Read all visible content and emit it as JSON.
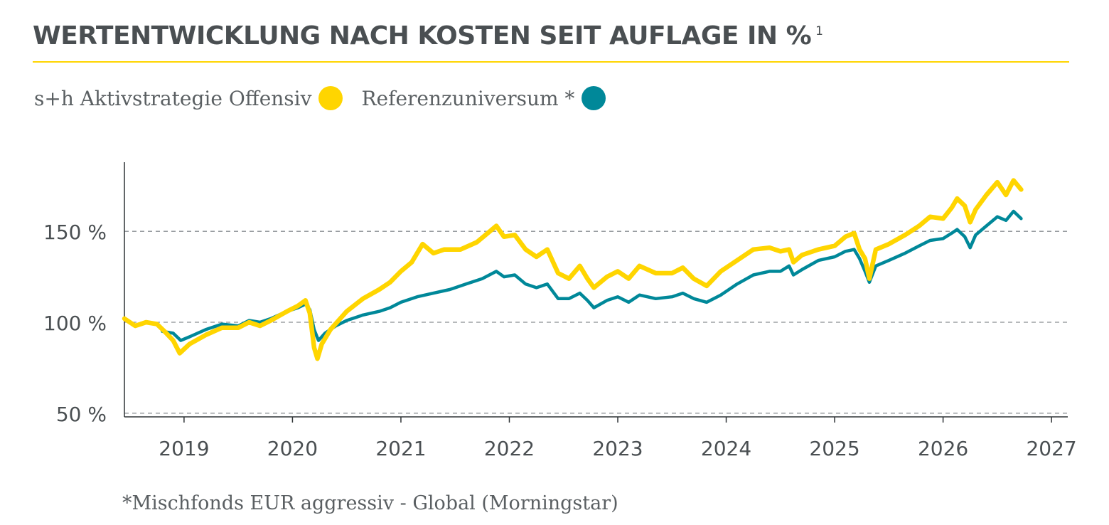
{
  "header": {
    "title": "WERTENTWICKLUNG NACH KOSTEN SEIT AUFLAGE IN %",
    "footnote_marker": "1"
  },
  "footnote": "*Mischfonds EUR aggressiv - Global (Morningstar)",
  "chart_data": {
    "type": "line",
    "title": "WERTENTWICKLUNG NACH KOSTEN SEIT AUFLAGE IN %",
    "xlabel": "",
    "ylabel": "",
    "xlim": [
      2018.45,
      2027.15
    ],
    "ylim": [
      48,
      188
    ],
    "x_ticks": [
      2019,
      2020,
      2021,
      2022,
      2023,
      2024,
      2025,
      2026,
      2027
    ],
    "x_tick_labels": [
      "2019",
      "2020",
      "2021",
      "2022",
      "2023",
      "2024",
      "2025",
      "2026",
      "2027"
    ],
    "y_ticks": [
      50,
      100,
      150
    ],
    "y_tick_labels": [
      "50 %",
      "100 %",
      "150 %"
    ],
    "grid": "horizontal dashed at y ticks",
    "legend_position": "top-left",
    "series": [
      {
        "name": "s+h Aktivstrategie Offensiv",
        "color": "#ffd500",
        "points": [
          [
            2018.45,
            102
          ],
          [
            2018.55,
            98
          ],
          [
            2018.65,
            100
          ],
          [
            2018.75,
            99
          ],
          [
            2018.82,
            95
          ],
          [
            2018.9,
            90
          ],
          [
            2018.96,
            83
          ],
          [
            2019.05,
            88
          ],
          [
            2019.2,
            93
          ],
          [
            2019.35,
            97
          ],
          [
            2019.5,
            97
          ],
          [
            2019.6,
            100
          ],
          [
            2019.7,
            98
          ],
          [
            2019.8,
            101
          ],
          [
            2019.95,
            106
          ],
          [
            2020.05,
            109
          ],
          [
            2020.12,
            112
          ],
          [
            2020.16,
            105
          ],
          [
            2020.2,
            86
          ],
          [
            2020.23,
            80
          ],
          [
            2020.27,
            88
          ],
          [
            2020.35,
            96
          ],
          [
            2020.5,
            106
          ],
          [
            2020.65,
            113
          ],
          [
            2020.8,
            118
          ],
          [
            2020.9,
            122
          ],
          [
            2021.0,
            128
          ],
          [
            2021.1,
            133
          ],
          [
            2021.2,
            143
          ],
          [
            2021.3,
            138
          ],
          [
            2021.4,
            140
          ],
          [
            2021.55,
            140
          ],
          [
            2021.7,
            144
          ],
          [
            2021.8,
            149
          ],
          [
            2021.88,
            153
          ],
          [
            2021.95,
            147
          ],
          [
            2022.05,
            148
          ],
          [
            2022.15,
            140
          ],
          [
            2022.25,
            136
          ],
          [
            2022.35,
            140
          ],
          [
            2022.45,
            127
          ],
          [
            2022.55,
            124
          ],
          [
            2022.65,
            131
          ],
          [
            2022.72,
            124
          ],
          [
            2022.78,
            119
          ],
          [
            2022.9,
            125
          ],
          [
            2023.0,
            128
          ],
          [
            2023.1,
            124
          ],
          [
            2023.2,
            131
          ],
          [
            2023.35,
            127
          ],
          [
            2023.5,
            127
          ],
          [
            2023.6,
            130
          ],
          [
            2023.7,
            124
          ],
          [
            2023.82,
            120
          ],
          [
            2023.95,
            128
          ],
          [
            2024.1,
            134
          ],
          [
            2024.25,
            140
          ],
          [
            2024.4,
            141
          ],
          [
            2024.5,
            139
          ],
          [
            2024.58,
            140
          ],
          [
            2024.62,
            133
          ],
          [
            2024.7,
            137
          ],
          [
            2024.85,
            140
          ],
          [
            2025.0,
            142
          ],
          [
            2025.1,
            147
          ],
          [
            2025.18,
            149
          ],
          [
            2025.23,
            140
          ],
          [
            2025.28,
            135
          ],
          [
            2025.32,
            124
          ],
          [
            2025.38,
            140
          ],
          [
            2025.5,
            143
          ],
          [
            2025.65,
            148
          ],
          [
            2025.78,
            153
          ],
          [
            2025.88,
            158
          ],
          [
            2026.0,
            157
          ],
          [
            2026.08,
            163
          ],
          [
            2026.13,
            168
          ],
          [
            2026.2,
            164
          ],
          [
            2026.25,
            155
          ],
          [
            2026.3,
            162
          ],
          [
            2026.4,
            170
          ],
          [
            2026.5,
            177
          ],
          [
            2026.58,
            170
          ],
          [
            2026.65,
            178
          ],
          [
            2026.72,
            173
          ]
        ]
      },
      {
        "name": "Referenzuniversum *",
        "color": "#008899",
        "points": [
          [
            2018.8,
            95
          ],
          [
            2018.9,
            94
          ],
          [
            2018.97,
            90
          ],
          [
            2019.05,
            92
          ],
          [
            2019.2,
            96
          ],
          [
            2019.35,
            99
          ],
          [
            2019.5,
            98
          ],
          [
            2019.6,
            101
          ],
          [
            2019.7,
            100
          ],
          [
            2019.8,
            102
          ],
          [
            2019.95,
            106
          ],
          [
            2020.05,
            108
          ],
          [
            2020.12,
            110
          ],
          [
            2020.16,
            107
          ],
          [
            2020.2,
            96
          ],
          [
            2020.24,
            90
          ],
          [
            2020.3,
            94
          ],
          [
            2020.4,
            98
          ],
          [
            2020.5,
            101
          ],
          [
            2020.65,
            104
          ],
          [
            2020.8,
            106
          ],
          [
            2020.9,
            108
          ],
          [
            2021.0,
            111
          ],
          [
            2021.15,
            114
          ],
          [
            2021.3,
            116
          ],
          [
            2021.45,
            118
          ],
          [
            2021.6,
            121
          ],
          [
            2021.75,
            124
          ],
          [
            2021.88,
            128
          ],
          [
            2021.95,
            125
          ],
          [
            2022.05,
            126
          ],
          [
            2022.15,
            121
          ],
          [
            2022.25,
            119
          ],
          [
            2022.35,
            121
          ],
          [
            2022.45,
            113
          ],
          [
            2022.55,
            113
          ],
          [
            2022.65,
            116
          ],
          [
            2022.72,
            112
          ],
          [
            2022.78,
            108
          ],
          [
            2022.9,
            112
          ],
          [
            2023.0,
            114
          ],
          [
            2023.1,
            111
          ],
          [
            2023.2,
            115
          ],
          [
            2023.35,
            113
          ],
          [
            2023.5,
            114
          ],
          [
            2023.6,
            116
          ],
          [
            2023.7,
            113
          ],
          [
            2023.82,
            111
          ],
          [
            2023.95,
            115
          ],
          [
            2024.1,
            121
          ],
          [
            2024.25,
            126
          ],
          [
            2024.4,
            128
          ],
          [
            2024.5,
            128
          ],
          [
            2024.58,
            131
          ],
          [
            2024.62,
            126
          ],
          [
            2024.7,
            129
          ],
          [
            2024.85,
            134
          ],
          [
            2025.0,
            136
          ],
          [
            2025.1,
            139
          ],
          [
            2025.18,
            140
          ],
          [
            2025.23,
            135
          ],
          [
            2025.28,
            128
          ],
          [
            2025.32,
            122
          ],
          [
            2025.38,
            131
          ],
          [
            2025.5,
            134
          ],
          [
            2025.65,
            138
          ],
          [
            2025.78,
            142
          ],
          [
            2025.88,
            145
          ],
          [
            2026.0,
            146
          ],
          [
            2026.08,
            149
          ],
          [
            2026.13,
            151
          ],
          [
            2026.2,
            147
          ],
          [
            2026.25,
            141
          ],
          [
            2026.3,
            148
          ],
          [
            2026.4,
            153
          ],
          [
            2026.5,
            158
          ],
          [
            2026.58,
            156
          ],
          [
            2026.65,
            161
          ],
          [
            2026.72,
            157
          ]
        ]
      }
    ]
  }
}
